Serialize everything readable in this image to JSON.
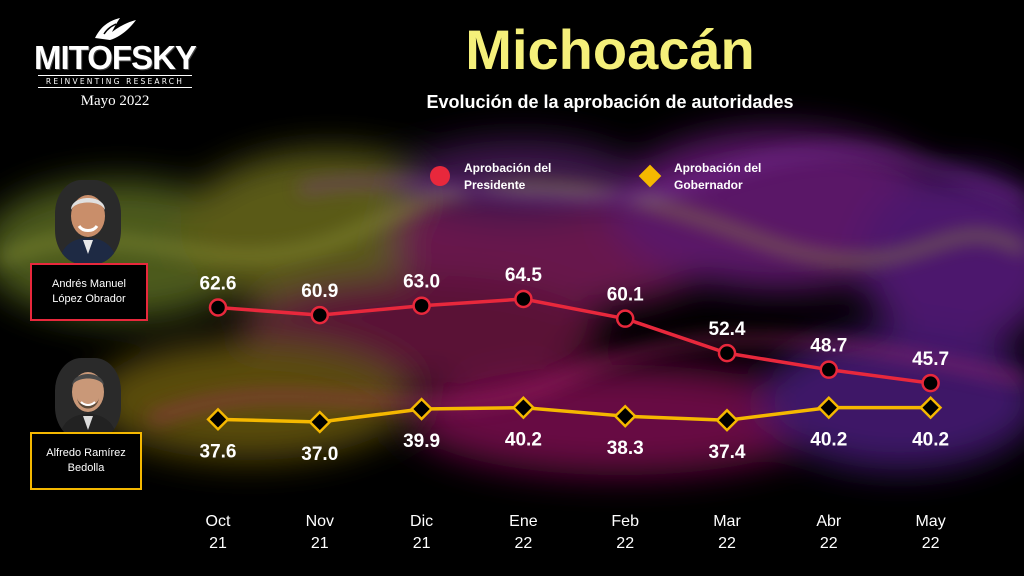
{
  "brand": {
    "name": "MITOFSKY",
    "tagline": "REINVENTING RESEARCH",
    "date": "Mayo 2022"
  },
  "title": "Michoacán",
  "subtitle": "Evolución de la aprobación de autoridades",
  "people": [
    {
      "line1": "Andrés Manuel",
      "line2": "López Obrador",
      "border_color": "#e8283c"
    },
    {
      "line1": "Alfredo Ramírez",
      "line2": "Bedolla",
      "border_color": "#f5b800"
    }
  ],
  "colors": {
    "president": "#e8283c",
    "governor": "#f5b800",
    "title": "#f5f07a"
  },
  "chart_data": {
    "type": "line",
    "categories": [
      [
        "Oct",
        "21"
      ],
      [
        "Nov",
        "21"
      ],
      [
        "Dic",
        "21"
      ],
      [
        "Ene",
        "22"
      ],
      [
        "Feb",
        "22"
      ],
      [
        "Mar",
        "22"
      ],
      [
        "Abr",
        "22"
      ],
      [
        "May",
        "22"
      ]
    ],
    "series": [
      {
        "name": "Aprobación del Presidente",
        "name_lines": [
          "Aprobación del",
          "Presidente"
        ],
        "marker": "circle",
        "values": [
          62.6,
          60.9,
          63.0,
          64.5,
          60.1,
          52.4,
          48.7,
          45.7
        ],
        "labels": [
          "62.6",
          "60.9",
          "63.0",
          "64.5",
          "60.1",
          "52.4",
          "48.7",
          "45.7"
        ]
      },
      {
        "name": "Aprobación del Gobernador",
        "name_lines": [
          "Aprobación del",
          "Gobernador"
        ],
        "marker": "diamond",
        "values": [
          37.6,
          37.0,
          39.9,
          40.2,
          38.3,
          37.4,
          40.2,
          40.2
        ],
        "labels": [
          "37.6",
          "37.0",
          "39.9",
          "40.2",
          "38.3",
          "37.4",
          "40.2",
          "40.2"
        ]
      }
    ],
    "legend_position": "top",
    "grid": false
  }
}
